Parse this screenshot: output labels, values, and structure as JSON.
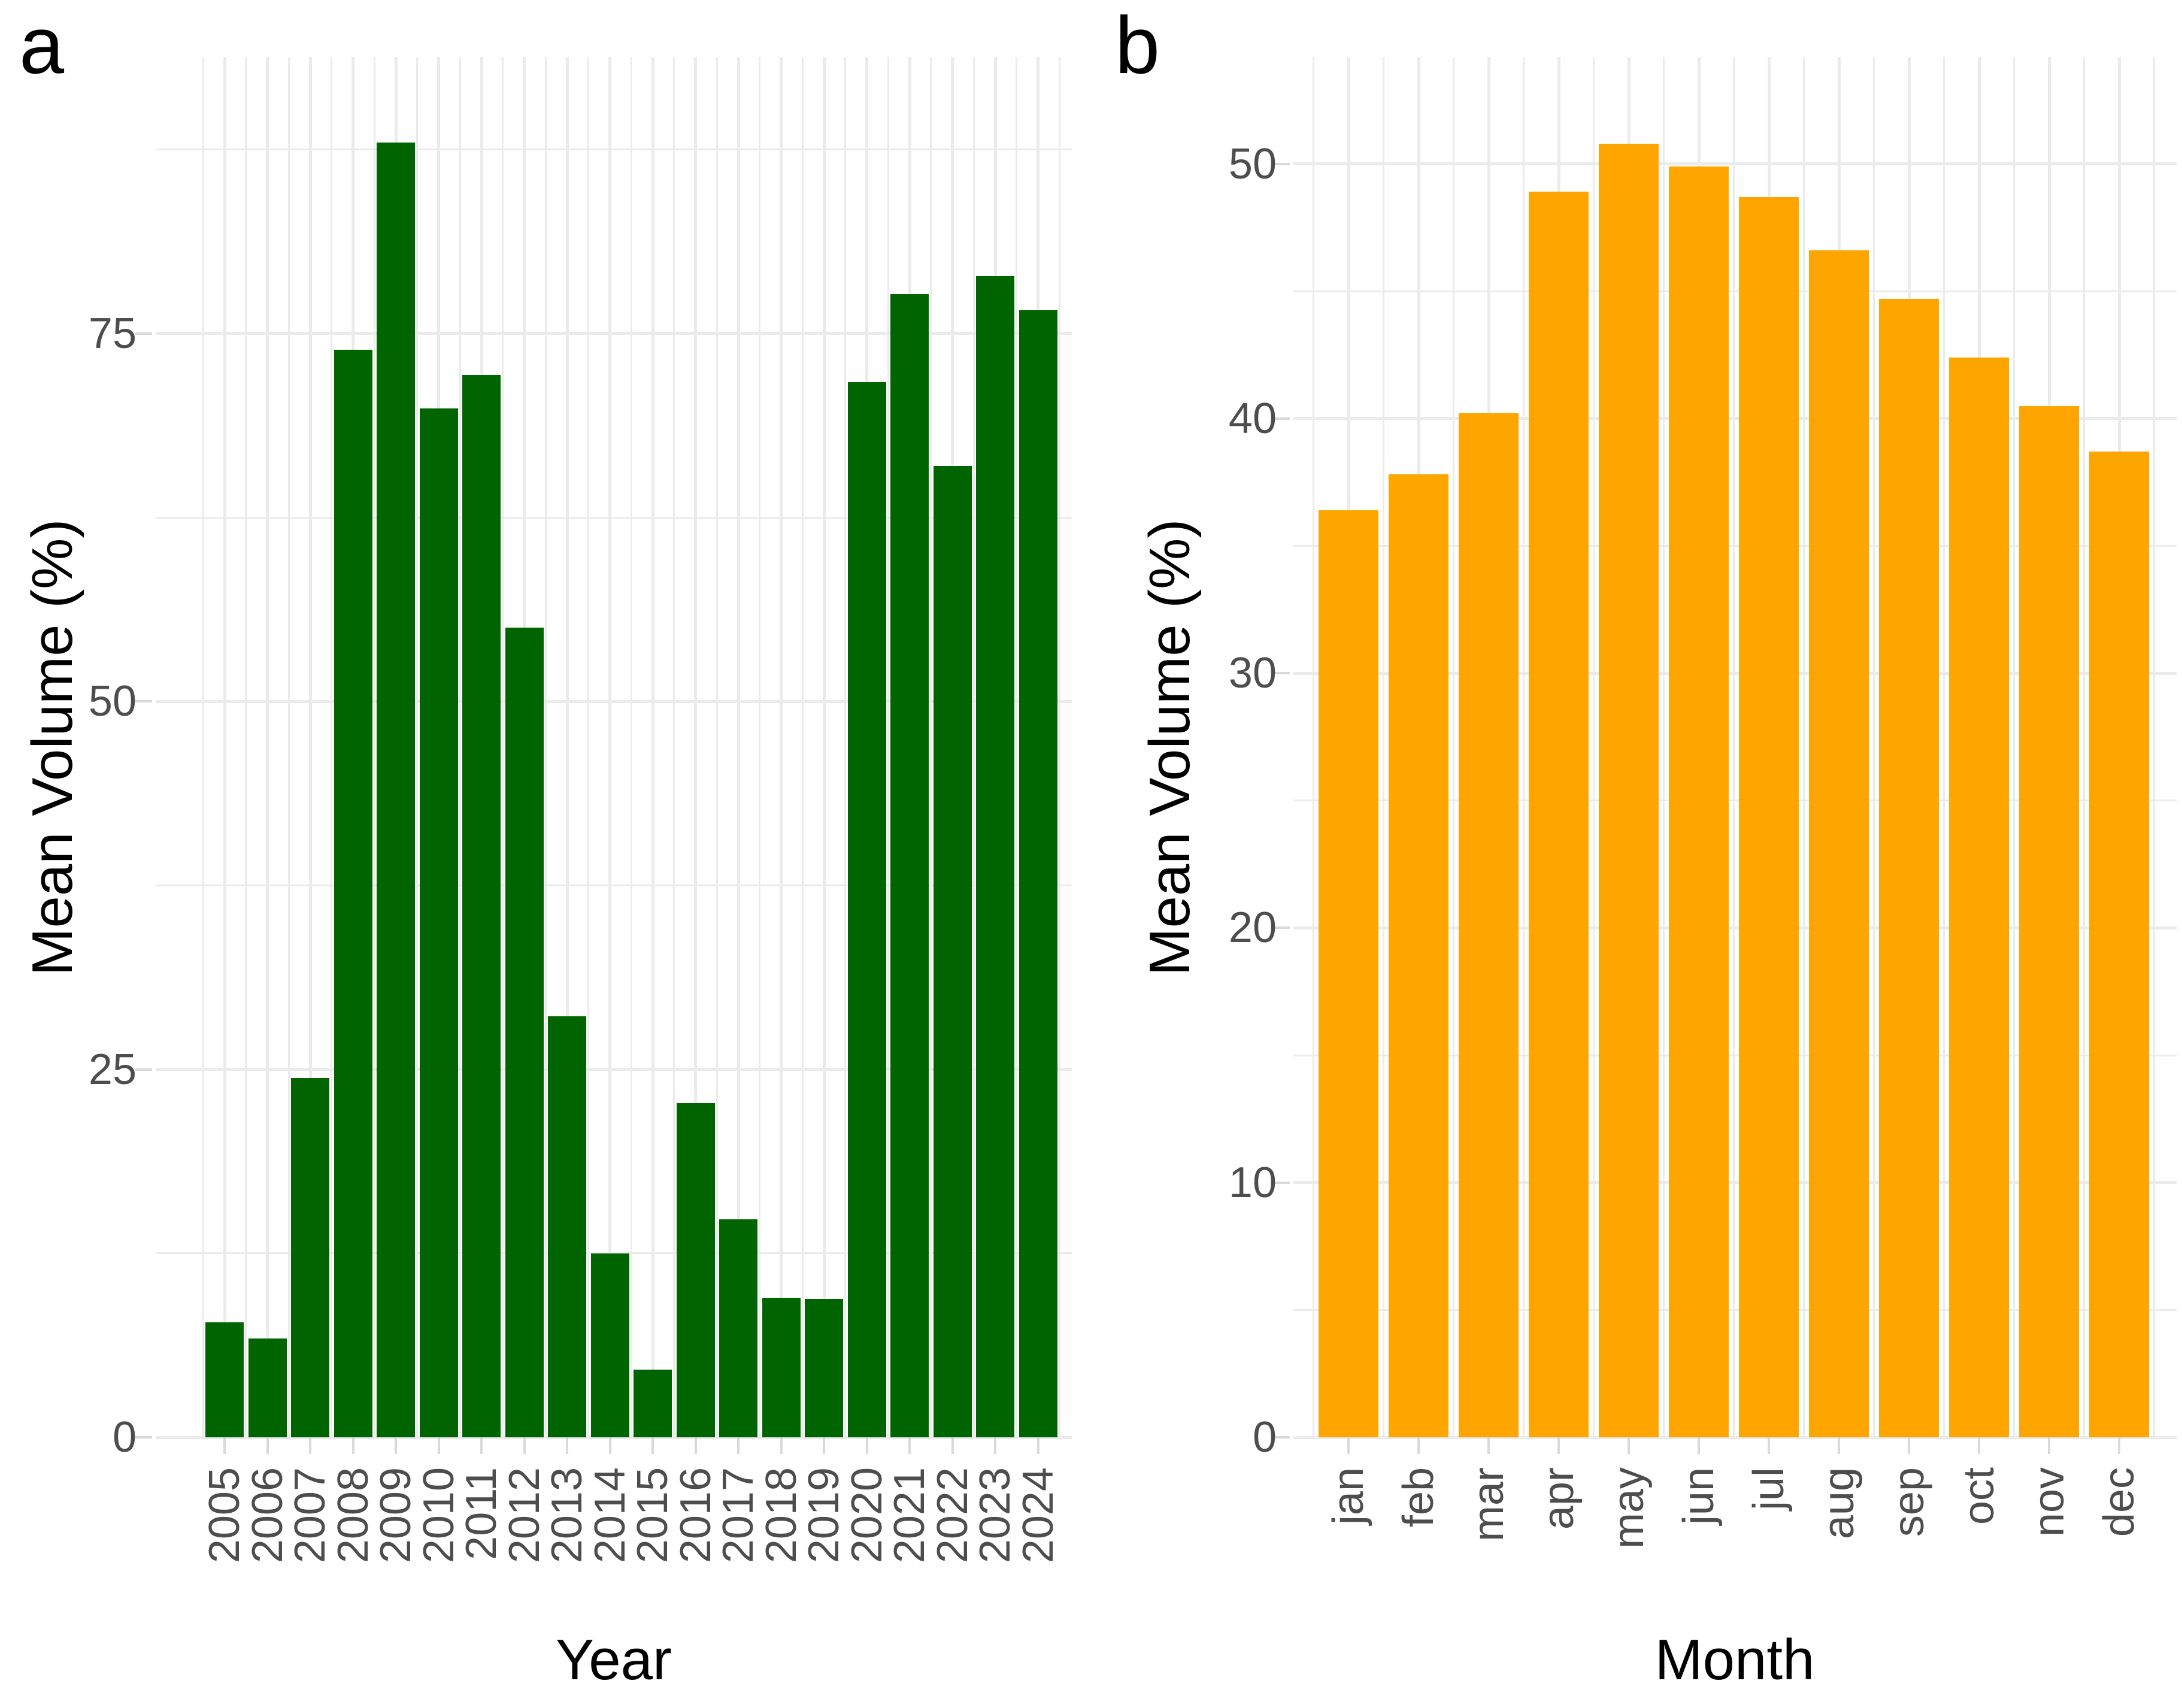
{
  "figure": {
    "background": "#ffffff",
    "panels": [
      {
        "letter": "a",
        "x_title": "Year",
        "y_title": "Mean Volume (%)"
      },
      {
        "letter": "b",
        "x_title": "Month",
        "y_title": "Mean Volume (%)"
      }
    ]
  },
  "chart_data": [
    {
      "type": "bar",
      "panel_label": "a",
      "title": "",
      "xlabel": "Year",
      "ylabel": "Mean Volume (%)",
      "categories": [
        "2005",
        "2006",
        "2007",
        "2008",
        "2009",
        "2010",
        "2011",
        "2012",
        "2013",
        "2014",
        "2015",
        "2016",
        "2017",
        "2018",
        "2019",
        "2020",
        "2021",
        "2022",
        "2023",
        "2024"
      ],
      "values": [
        7.8,
        6.7,
        24.4,
        73.9,
        88.0,
        69.9,
        72.2,
        55.0,
        28.6,
        12.5,
        4.6,
        22.7,
        14.8,
        9.5,
        9.4,
        71.7,
        77.7,
        66.0,
        78.9,
        76.6
      ],
      "bar_color": "#006400",
      "ylim": [
        0,
        93.8
      ],
      "yticks": [
        0,
        25,
        50,
        75
      ],
      "yticks_minor": [
        12.5,
        37.5,
        62.5,
        87.5
      ],
      "grid": "major and minor gridlines, light gray on white",
      "legend": "none",
      "x_labels_rotated_90": true
    },
    {
      "type": "bar",
      "panel_label": "b",
      "title": "",
      "xlabel": "Month",
      "ylabel": "Mean Volume (%)",
      "categories": [
        "jan",
        "feb",
        "mar",
        "apr",
        "may",
        "jun",
        "jul",
        "aug",
        "sep",
        "oct",
        "nov",
        "dec"
      ],
      "values": [
        36.4,
        37.8,
        40.2,
        48.9,
        50.8,
        49.9,
        48.7,
        46.6,
        44.7,
        42.4,
        40.5,
        38.7
      ],
      "bar_color": "#FFA500",
      "ylim": [
        0,
        54.2
      ],
      "yticks": [
        0,
        10,
        20,
        30,
        40,
        50
      ],
      "yticks_minor": [
        5,
        15,
        25,
        35,
        45
      ],
      "grid": "major and minor gridlines, light gray on white",
      "legend": "none",
      "x_labels_rotated_90": true
    }
  ],
  "colors": {
    "bar_green": "#006400",
    "bar_orange": "#FFA500",
    "gridline": "#ebebeb",
    "axis_tick": "#d9d9d9",
    "tick_label_color": "#4d4d4d",
    "axis_title_color": "#000000"
  }
}
